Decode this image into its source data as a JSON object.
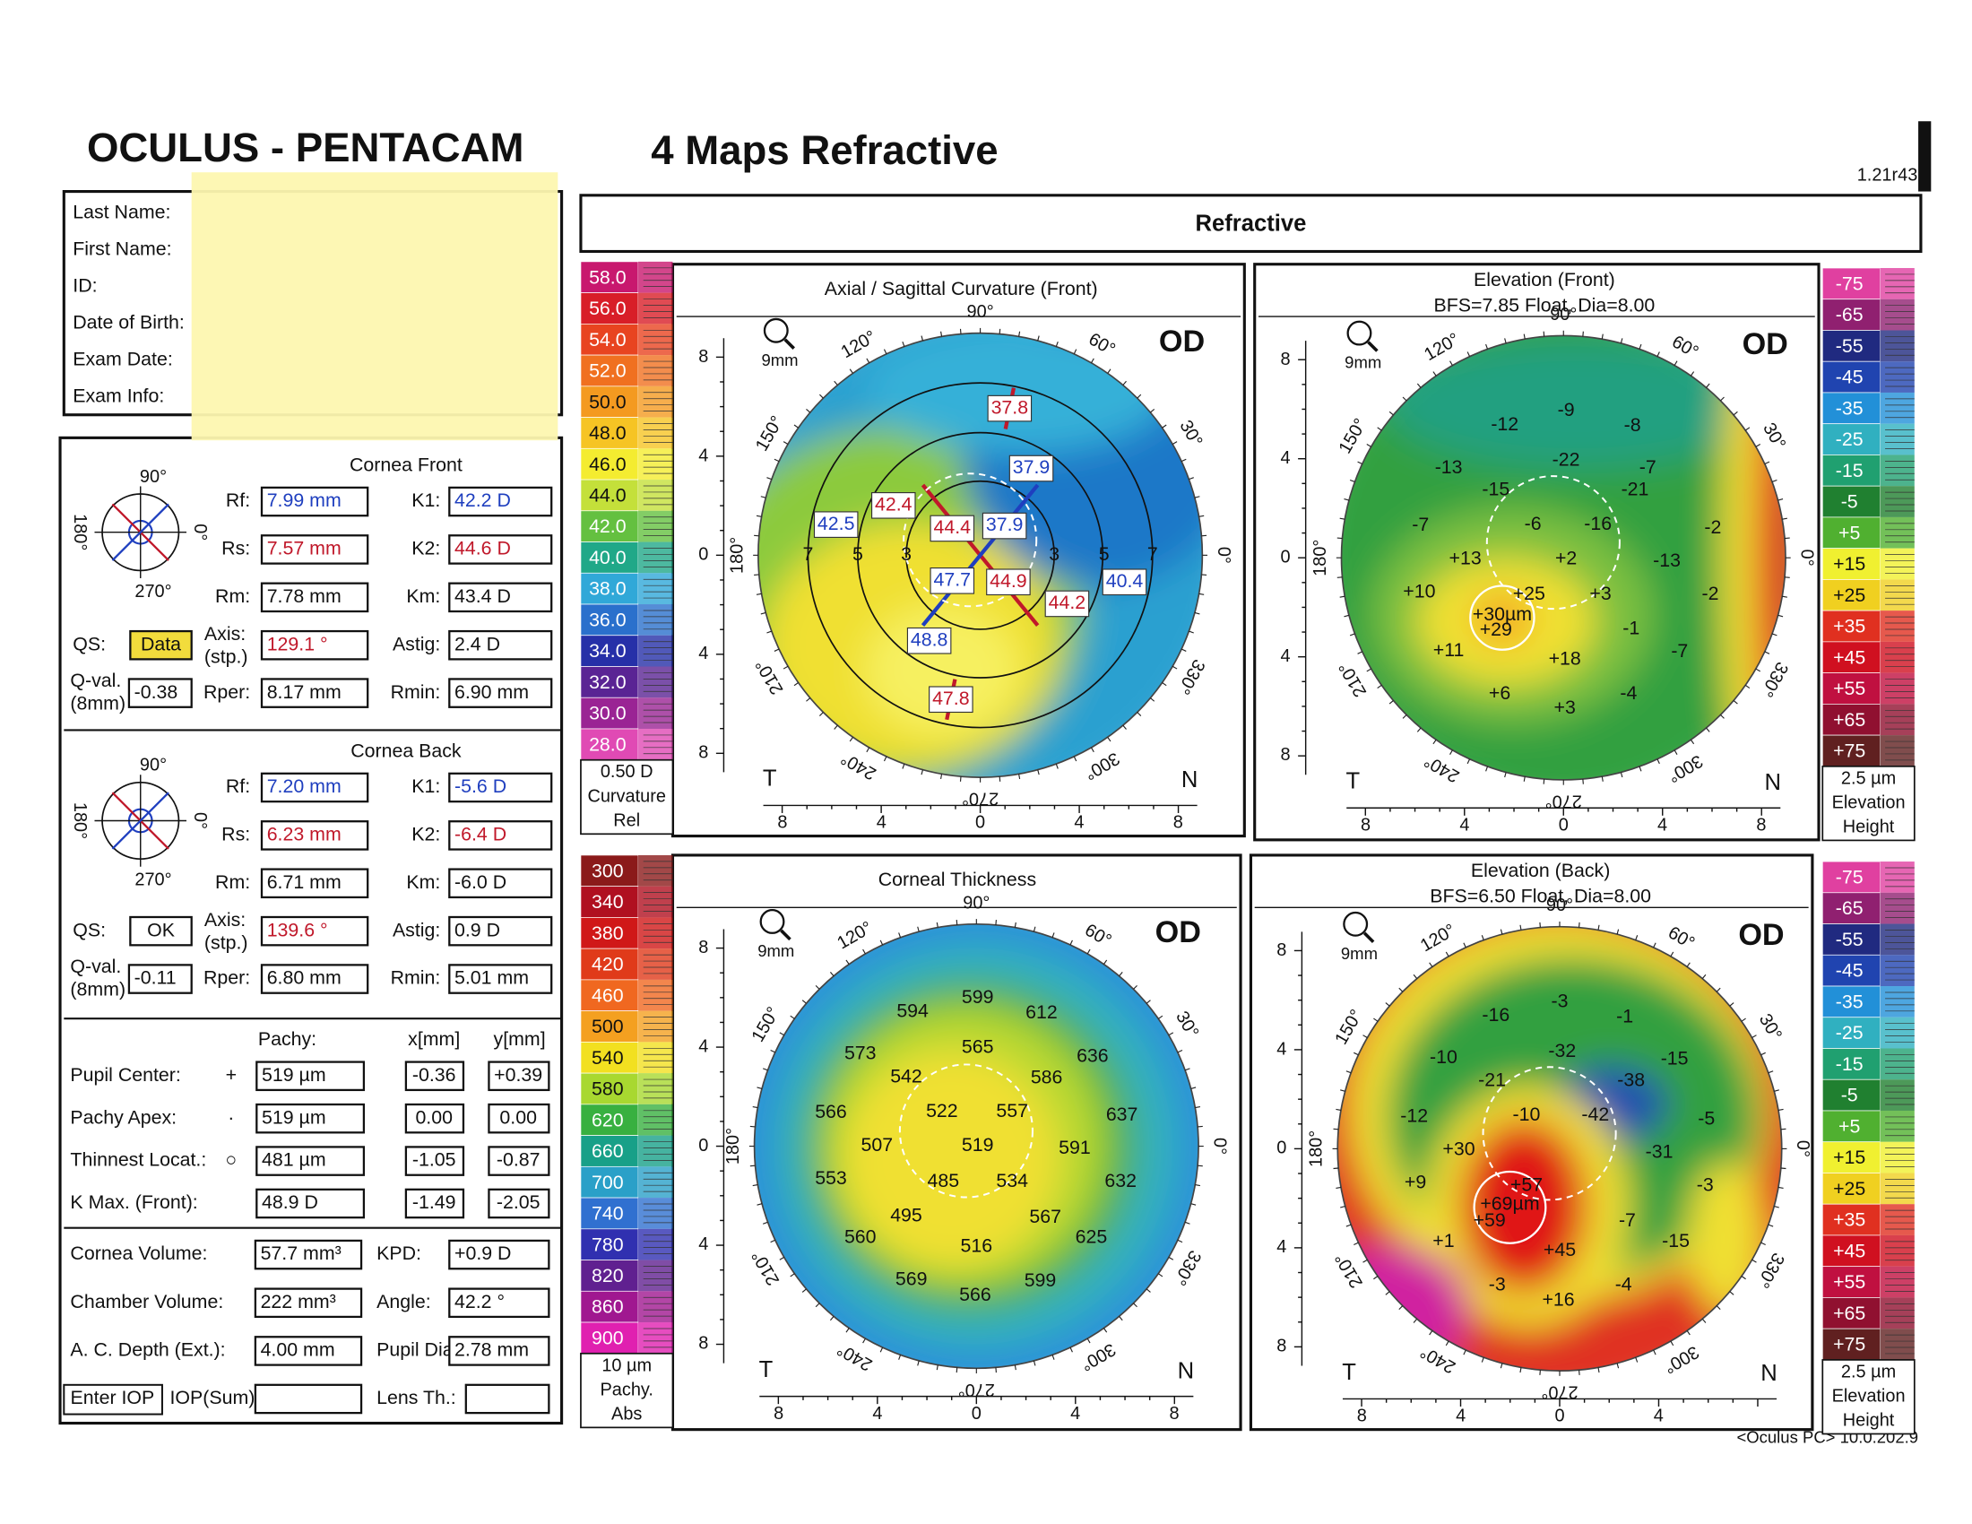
{
  "header": {
    "title": "OCULUS  -  PENTACAM",
    "subtitle": "4 Maps Refractive",
    "version": "1.21r43",
    "section": "Refractive"
  },
  "patient": {
    "labels": [
      "Last Name:",
      "First Name:",
      "ID:",
      "Date of Birth:",
      "Exam Date:",
      "Exam Info:"
    ]
  },
  "cornea_front": {
    "title": "Cornea Front",
    "compass": [
      "90°",
      "180°",
      "0°",
      "270°"
    ],
    "fields": [
      {
        "label": "Rf:",
        "value": "7.99 mm",
        "color": "#1f3fbf"
      },
      {
        "label": "Rs:",
        "value": "7.57 mm",
        "color": "#c0182a"
      },
      {
        "label": "Rm:",
        "value": "7.78 mm"
      },
      {
        "label": "Axis:",
        "sub": "(stp.)",
        "value": "129.1 °",
        "color": "#c0182a"
      },
      {
        "label": "Rper:",
        "value": "8.17 mm"
      }
    ],
    "fields_right": [
      {
        "label": "K1:",
        "value": "42.2 D",
        "color": "#1f3fbf"
      },
      {
        "label": "K2:",
        "value": "44.6 D",
        "color": "#c0182a"
      },
      {
        "label": "Km:",
        "value": "43.4 D"
      },
      {
        "label": "Astig:",
        "value": "2.4 D"
      },
      {
        "label": "Rmin:",
        "value": "6.90 mm"
      }
    ],
    "qs": {
      "label": "QS:",
      "value": "Data",
      "bg": "#f2dc3c"
    },
    "qval": {
      "label": "Q-val.",
      "sub": "(8mm)",
      "value": "-0.38"
    }
  },
  "cornea_back": {
    "title": "Cornea Back",
    "compass": [
      "90°",
      "180°",
      "0°",
      "270°"
    ],
    "fields": [
      {
        "label": "Rf:",
        "value": "7.20 mm",
        "color": "#1f3fbf"
      },
      {
        "label": "Rs:",
        "value": "6.23 mm",
        "color": "#c0182a"
      },
      {
        "label": "Rm:",
        "value": "6.71 mm"
      },
      {
        "label": "Axis:",
        "sub": "(stp.)",
        "value": "139.6 °",
        "color": "#c0182a"
      },
      {
        "label": "Rper:",
        "value": "6.80 mm"
      }
    ],
    "fields_right": [
      {
        "label": "K1:",
        "value": "-5.6 D",
        "color": "#1f3fbf"
      },
      {
        "label": "K2:",
        "value": "-6.4 D",
        "color": "#c0182a"
      },
      {
        "label": "Km:",
        "value": "-6.0 D"
      },
      {
        "label": "Astig:",
        "value": "0.9 D"
      },
      {
        "label": "Rmin:",
        "value": "5.01 mm"
      }
    ],
    "qs": {
      "label": "QS:",
      "value": "OK"
    },
    "qval": {
      "label": "Q-val.",
      "sub": "(8mm)",
      "value": "-0.11"
    }
  },
  "pachy_table": {
    "headers": [
      "Pachy:",
      "x[mm]",
      "y[mm]"
    ],
    "rows": [
      [
        "Pupil Center:",
        "+",
        "519 µm",
        "-0.36",
        "+0.39"
      ],
      [
        "Pachy Apex:",
        "·",
        "519 µm",
        "0.00",
        "0.00"
      ],
      [
        "Thinnest Locat.:",
        "○",
        "481 µm",
        "-1.05",
        "-0.87"
      ],
      [
        "K Max. (Front):",
        "",
        "48.9 D",
        "-1.49",
        "-2.05"
      ]
    ]
  },
  "chamber": {
    "rows": [
      [
        "Cornea Volume:",
        "57.7 mm³",
        "KPD:",
        "+0.9 D"
      ],
      [
        "Chamber Volume:",
        "222 mm³",
        "Angle:",
        "42.2 °"
      ],
      [
        "A. C. Depth (Ext.):",
        "4.00 mm",
        "Pupil Dia:",
        "2.78 mm"
      ]
    ],
    "iop_button": "Enter IOP",
    "iop_label": "IOP(Sum)",
    "lens_label": "Lens Th.:"
  },
  "maps": [
    {
      "title": "Axial / Sagittal Curvature (Front)",
      "eye": "OD",
      "zoom": "9mm",
      "angles": [
        "90°",
        "60°",
        "30°",
        "0°",
        "330°",
        "300°",
        "270°",
        "240°",
        "210°",
        "180°",
        "150°",
        "120°"
      ],
      "yticks": [
        "8",
        "4",
        "0",
        "4",
        "8"
      ],
      "xticks": [
        "8",
        "4",
        "0",
        "4",
        "8"
      ],
      "temporal": "T",
      "nasal": "N",
      "labels": [
        {
          "text": "37.8",
          "color": "#c0182a"
        },
        {
          "text": "37.9",
          "color": "#1f3fbf"
        },
        {
          "text": "42.4",
          "color": "#c0182a"
        },
        {
          "text": "42.5",
          "color": "#1f3fbf"
        },
        {
          "text": "44.4",
          "color": "#c0182a"
        },
        {
          "text": "37.9",
          "color": "#1f3fbf"
        },
        {
          "text": "47.7",
          "color": "#1f3fbf"
        },
        {
          "text": "44.9",
          "color": "#c0182a"
        },
        {
          "text": "44.2",
          "color": "#c0182a"
        },
        {
          "text": "40.4",
          "color": "#1f3fbf"
        },
        {
          "text": "48.8",
          "color": "#1f3fbf"
        },
        {
          "text": "47.8",
          "color": "#c0182a"
        },
        {
          "text": "7"
        },
        {
          "text": "5"
        },
        {
          "text": "3"
        },
        {
          "text": "3"
        },
        {
          "text": "5"
        },
        {
          "text": "7"
        }
      ],
      "scale": {
        "unit": "0.50 D",
        "name": "Curvature",
        "mode": "Rel",
        "steps": [
          {
            "label": "58.0",
            "color": "#c8186e"
          },
          {
            "label": "56.0",
            "color": "#d81e28"
          },
          {
            "label": "54.0",
            "color": "#e84420"
          },
          {
            "label": "52.0",
            "color": "#f07020"
          },
          {
            "label": "50.0",
            "color": "#f49a20"
          },
          {
            "label": "48.0",
            "color": "#f6c424"
          },
          {
            "label": "46.0",
            "color": "#f4ec30"
          },
          {
            "label": "44.0",
            "color": "#c4e03a"
          },
          {
            "label": "42.0",
            "color": "#64c040"
          },
          {
            "label": "40.0",
            "color": "#20a888"
          },
          {
            "label": "38.0",
            "color": "#30a8d8"
          },
          {
            "label": "36.0",
            "color": "#2a70cc"
          },
          {
            "label": "34.0",
            "color": "#2630a8"
          },
          {
            "label": "32.0",
            "color": "#5a2494"
          },
          {
            "label": "30.0",
            "color": "#9a2494"
          },
          {
            "label": "28.0",
            "color": "#e04ab4"
          }
        ]
      }
    },
    {
      "title": "Elevation (Front)",
      "subtitle": "BFS=7.85 Float, Dia=8.00",
      "eye": "OD",
      "zoom": "9mm",
      "angles": [
        "90°",
        "60°",
        "30°",
        "0°",
        "330°",
        "300°",
        "270°",
        "240°",
        "210°",
        "180°",
        "150°",
        "120°"
      ],
      "yticks": [
        "8",
        "4",
        "0",
        "4",
        "8"
      ],
      "xticks": [
        "8",
        "4",
        "0",
        "4",
        "8"
      ],
      "temporal": "T",
      "nasal": "N",
      "labels": [
        "-12",
        "-9",
        "-8",
        "-13",
        "-22",
        "-7",
        "-15",
        "-21",
        "-7",
        "-6",
        "-16",
        "-2",
        "+13",
        "+2",
        "-13",
        "+10",
        "+25",
        "+3",
        "-2",
        "+30µm",
        "+29",
        "-1",
        "+11",
        "+18",
        "-7",
        "+6",
        "+3",
        "-4"
      ],
      "scale": {
        "unit": "2.5 µm",
        "name": "Elevation",
        "mode": "Height",
        "steps": [
          {
            "label": "-75",
            "color": "#e040a0"
          },
          {
            "label": "-65",
            "color": "#902070"
          },
          {
            "label": "-55",
            "color": "#202a80"
          },
          {
            "label": "-45",
            "color": "#2044b0"
          },
          {
            "label": "-35",
            "color": "#2290d8"
          },
          {
            "label": "-25",
            "color": "#30b0c0"
          },
          {
            "label": "-15",
            "color": "#20a070"
          },
          {
            "label": "-5",
            "color": "#208030"
          },
          {
            "label": "+5",
            "color": "#50b030"
          },
          {
            "label": "+15",
            "color": "#f0f030"
          },
          {
            "label": "+25",
            "color": "#f0d020"
          },
          {
            "label": "+35",
            "color": "#e03020"
          },
          {
            "label": "+45",
            "color": "#d01020"
          },
          {
            "label": "+55",
            "color": "#c01040"
          },
          {
            "label": "+65",
            "color": "#901030"
          },
          {
            "label": "+75",
            "color": "#602020"
          }
        ]
      }
    },
    {
      "title": "Corneal Thickness",
      "eye": "OD",
      "zoom": "9mm",
      "angles": [
        "90°",
        "60°",
        "30°",
        "0°",
        "330°",
        "300°",
        "270°",
        "240°",
        "210°",
        "180°",
        "150°",
        "120°"
      ],
      "yticks": [
        "8",
        "4",
        "0",
        "4",
        "8"
      ],
      "xticks": [
        "8",
        "4",
        "0",
        "4",
        "8"
      ],
      "temporal": "T",
      "nasal": "N",
      "labels": [
        "594",
        "599",
        "612",
        "573",
        "565",
        "636",
        "542",
        "586",
        "566",
        "522",
        "557",
        "637",
        "507",
        "519",
        "591",
        "553",
        "485",
        "534",
        "632",
        "495",
        "567",
        "560",
        "516",
        "625",
        "569",
        "566",
        "599"
      ],
      "scale": {
        "unit": "10 µm",
        "name": "Pachy.",
        "mode": "Abs",
        "steps": [
          {
            "label": "300",
            "color": "#8b1a1a"
          },
          {
            "label": "340",
            "color": "#b01020"
          },
          {
            "label": "380",
            "color": "#d01818"
          },
          {
            "label": "420",
            "color": "#e03a1a"
          },
          {
            "label": "460",
            "color": "#f06820"
          },
          {
            "label": "500",
            "color": "#f4a020"
          },
          {
            "label": "540",
            "color": "#f2e020"
          },
          {
            "label": "580",
            "color": "#a8d830"
          },
          {
            "label": "620",
            "color": "#38b040"
          },
          {
            "label": "660",
            "color": "#18a088"
          },
          {
            "label": "700",
            "color": "#2aa0c8"
          },
          {
            "label": "740",
            "color": "#3070d0"
          },
          {
            "label": "780",
            "color": "#3030b0"
          },
          {
            "label": "820",
            "color": "#602090"
          },
          {
            "label": "860",
            "color": "#a01890"
          },
          {
            "label": "900",
            "color": "#e020b0"
          }
        ]
      }
    },
    {
      "title": "Elevation (Back)",
      "subtitle": "BFS=6.50 Float, Dia=8.00",
      "eye": "OD",
      "zoom": "9mm",
      "angles": [
        "90°",
        "60°",
        "30°",
        "0°",
        "330°",
        "300°",
        "270°",
        "240°",
        "210°",
        "180°",
        "150°",
        "120°"
      ],
      "yticks": [
        "8",
        "4",
        "0",
        "4",
        "8"
      ],
      "xticks": [
        "8",
        "4",
        "0",
        "4"
      ],
      "temporal": "T",
      "nasal": "N",
      "labels": [
        "-16",
        "-3",
        "-1",
        "-10",
        "-32",
        "-15",
        "-21",
        "-38",
        "-12",
        "-10",
        "-42",
        "-5",
        "+30",
        "-31",
        "+9",
        "+57",
        "+69µm",
        "+59",
        "-7",
        "-3",
        "+1",
        "+45",
        "-15",
        "-3",
        "+16",
        "-4"
      ],
      "scale": {
        "unit": "2.5 µm",
        "name": "Elevation",
        "mode": "Height",
        "steps": [
          {
            "label": "-75",
            "color": "#e040a0"
          },
          {
            "label": "-65",
            "color": "#902070"
          },
          {
            "label": "-55",
            "color": "#202a80"
          },
          {
            "label": "-45",
            "color": "#2044b0"
          },
          {
            "label": "-35",
            "color": "#2290d8"
          },
          {
            "label": "-25",
            "color": "#30b0c0"
          },
          {
            "label": "-15",
            "color": "#20a070"
          },
          {
            "label": "-5",
            "color": "#208030"
          },
          {
            "label": "+5",
            "color": "#50b030"
          },
          {
            "label": "+15",
            "color": "#f0f030"
          },
          {
            "label": "+25",
            "color": "#f0d020"
          },
          {
            "label": "+35",
            "color": "#e03020"
          },
          {
            "label": "+45",
            "color": "#d01020"
          },
          {
            "label": "+55",
            "color": "#c01040"
          },
          {
            "label": "+65",
            "color": "#901030"
          },
          {
            "label": "+75",
            "color": "#602020"
          }
        ]
      }
    }
  ],
  "footer": "<Oculus PC> 10.0.202.9"
}
